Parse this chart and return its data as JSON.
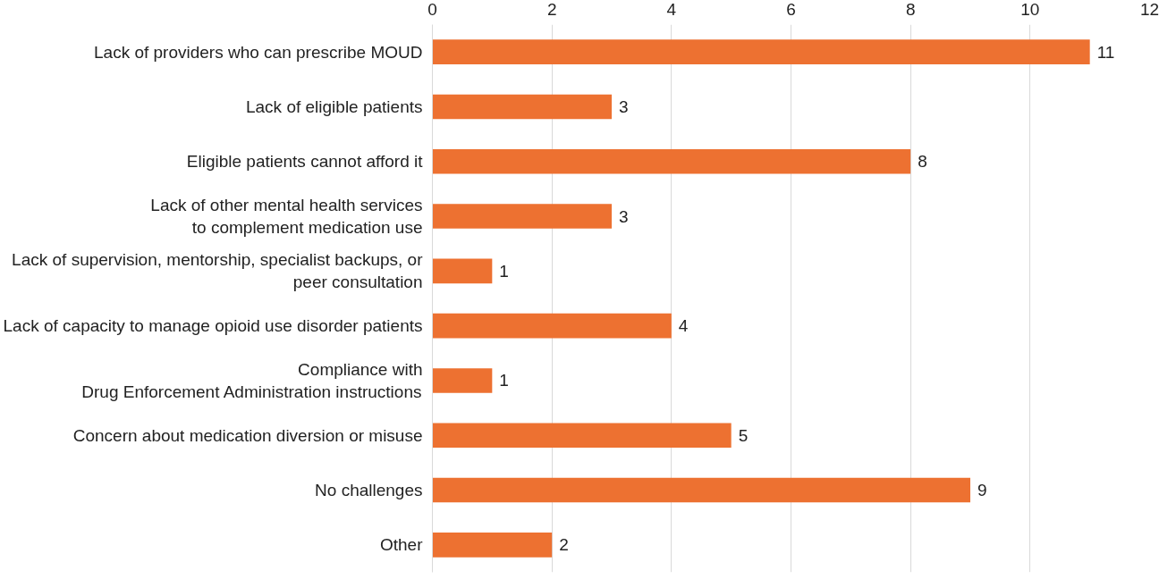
{
  "chart_data": {
    "type": "bar",
    "orientation": "horizontal",
    "categories": [
      "Lack of providers who can prescribe MOUD",
      "Lack of eligible patients",
      "Eligible patients cannot afford it",
      "Lack of other mental health services\nto complement medication use",
      "Lack of supervision, mentorship, specialist backups, or\npeer consultation",
      "Lack of capacity to manage opioid use disorder patients",
      "Compliance with\nDrug Enforcement Administration instructions",
      "Concern about medication diversion or misuse",
      "No challenges",
      "Other"
    ],
    "values": [
      11,
      3,
      8,
      3,
      1,
      4,
      1,
      5,
      9,
      2
    ],
    "color": "#ed7131",
    "xlim": [
      0,
      12
    ],
    "xticks": [
      0,
      2,
      4,
      6,
      8,
      10,
      12
    ],
    "grid": "x",
    "data_labels": true
  }
}
